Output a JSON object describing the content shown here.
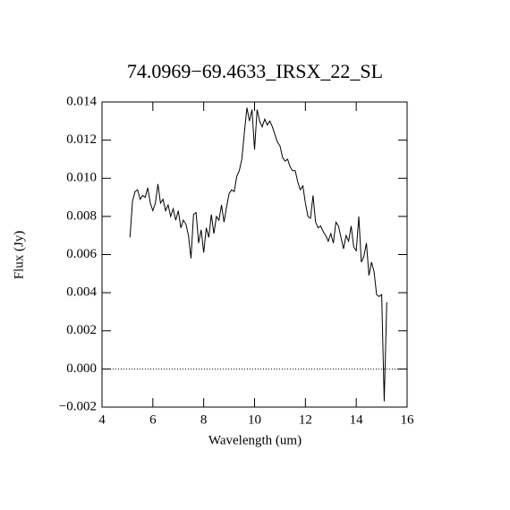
{
  "chart_data": {
    "type": "line",
    "title": "74.0969−69.4633_IRSX_22_SL",
    "x_label": "Wavelength (um)",
    "y_label": "Flux (Jy)",
    "x": [
      5.1,
      5.2,
      5.3,
      5.4,
      5.5,
      5.6,
      5.7,
      5.8,
      5.9,
      6.0,
      6.1,
      6.2,
      6.3,
      6.4,
      6.5,
      6.6,
      6.7,
      6.8,
      6.9,
      7.0,
      7.1,
      7.2,
      7.3,
      7.4,
      7.5,
      7.6,
      7.7,
      7.8,
      7.9,
      8.0,
      8.1,
      8.2,
      8.3,
      8.4,
      8.5,
      8.6,
      8.7,
      8.8,
      8.9,
      9.0,
      9.1,
      9.2,
      9.3,
      9.4,
      9.5,
      9.6,
      9.7,
      9.8,
      9.9,
      10.0,
      10.1,
      10.2,
      10.3,
      10.4,
      10.5,
      10.6,
      10.7,
      10.8,
      10.9,
      11.0,
      11.1,
      11.2,
      11.3,
      11.4,
      11.5,
      11.6,
      11.7,
      11.8,
      11.9,
      12.0,
      12.1,
      12.2,
      12.3,
      12.4,
      12.5,
      12.6,
      12.7,
      12.8,
      12.9,
      13.0,
      13.1,
      13.2,
      13.3,
      13.4,
      13.5,
      13.6,
      13.7,
      13.8,
      13.9,
      14.0,
      14.1,
      14.2,
      14.3,
      14.4,
      14.5,
      14.6,
      14.7,
      14.8,
      14.9,
      15.0,
      15.1,
      15.2
    ],
    "values": [
      0.0069,
      0.0088,
      0.0093,
      0.0094,
      0.0089,
      0.0091,
      0.009,
      0.0095,
      0.0087,
      0.0083,
      0.0087,
      0.0097,
      0.0087,
      0.0089,
      0.0083,
      0.0086,
      0.008,
      0.0084,
      0.0078,
      0.0083,
      0.0074,
      0.0078,
      0.0076,
      0.007,
      0.0058,
      0.0081,
      0.0082,
      0.0066,
      0.0073,
      0.0061,
      0.0074,
      0.0069,
      0.0081,
      0.0071,
      0.008,
      0.0078,
      0.0086,
      0.0077,
      0.0085,
      0.0092,
      0.0094,
      0.0093,
      0.0101,
      0.0104,
      0.011,
      0.0124,
      0.0137,
      0.013,
      0.0136,
      0.0115,
      0.0136,
      0.013,
      0.0127,
      0.0131,
      0.0128,
      0.013,
      0.0127,
      0.0123,
      0.0119,
      0.0117,
      0.0111,
      0.0109,
      0.011,
      0.0106,
      0.0104,
      0.0104,
      0.0098,
      0.0094,
      0.0096,
      0.0087,
      0.008,
      0.0079,
      0.0091,
      0.0077,
      0.0074,
      0.0075,
      0.0072,
      0.007,
      0.0067,
      0.0071,
      0.0066,
      0.0077,
      0.0075,
      0.0069,
      0.0063,
      0.007,
      0.0067,
      0.0075,
      0.0064,
      0.0062,
      0.008,
      0.0056,
      0.0059,
      0.0066,
      0.0049,
      0.0056,
      0.0051,
      0.0039,
      0.0038,
      0.0039,
      -0.0017,
      0.0035
    ],
    "color": "#000000",
    "xlim": [
      4,
      16
    ],
    "xticks": [
      4,
      6,
      8,
      10,
      12,
      14,
      16
    ],
    "ylim": [
      -0.002,
      0.014
    ],
    "yticks": [
      {
        "value": -0.002,
        "label": "−0.002"
      },
      {
        "value": 0,
        "label": "0.000"
      },
      {
        "value": 0.002,
        "label": "0.002"
      },
      {
        "value": 0.004,
        "label": "0.004"
      },
      {
        "value": 0.006,
        "label": "0.006"
      },
      {
        "value": 0.008,
        "label": "0.008"
      },
      {
        "value": 0.01,
        "label": "0.010"
      },
      {
        "value": 0.012,
        "label": "0.012"
      },
      {
        "value": 0.014,
        "label": "0.014"
      }
    ],
    "reference_line": 0
  }
}
